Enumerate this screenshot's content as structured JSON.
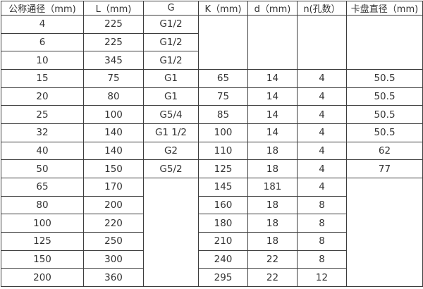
{
  "colors": {
    "background": "#ffffff",
    "border": "#3d3d3d",
    "text": "#333333"
  },
  "table": {
    "headers": [
      "公称通径（mm)",
      "L（mm)",
      "G",
      "K（mm)",
      "d（mm)",
      "n(孔数）",
      "卡盘直径（mm)"
    ],
    "rows": [
      {
        "cells": [
          {
            "t": "4"
          },
          {
            "t": "225"
          },
          {
            "t": "G1/2"
          },
          {
            "t": "",
            "rowspan": 3
          },
          {
            "t": "",
            "rowspan": 3
          },
          {
            "t": "",
            "rowspan": 3
          },
          {
            "t": "",
            "rowspan": 3
          }
        ]
      },
      {
        "cells": [
          {
            "t": "6"
          },
          {
            "t": "225"
          },
          {
            "t": "G1/2"
          }
        ]
      },
      {
        "cells": [
          {
            "t": "10"
          },
          {
            "t": "345"
          },
          {
            "t": "G1/2"
          }
        ]
      },
      {
        "cells": [
          {
            "t": "15"
          },
          {
            "t": "75"
          },
          {
            "t": "G1"
          },
          {
            "t": "65"
          },
          {
            "t": "14"
          },
          {
            "t": "4"
          },
          {
            "t": "50.5"
          }
        ]
      },
      {
        "cells": [
          {
            "t": "20"
          },
          {
            "t": "80"
          },
          {
            "t": "G1"
          },
          {
            "t": "75"
          },
          {
            "t": "14"
          },
          {
            "t": "4"
          },
          {
            "t": "50.5"
          }
        ]
      },
      {
        "cells": [
          {
            "t": "25"
          },
          {
            "t": "100"
          },
          {
            "t": "G5/4"
          },
          {
            "t": "85"
          },
          {
            "t": "14"
          },
          {
            "t": "4"
          },
          {
            "t": "50.5"
          }
        ]
      },
      {
        "cells": [
          {
            "t": "32"
          },
          {
            "t": "140"
          },
          {
            "t": "G1 1/2"
          },
          {
            "t": "100"
          },
          {
            "t": "14"
          },
          {
            "t": "4"
          },
          {
            "t": "50.5"
          }
        ]
      },
      {
        "cells": [
          {
            "t": "40"
          },
          {
            "t": "140"
          },
          {
            "t": "G2"
          },
          {
            "t": "110"
          },
          {
            "t": "18"
          },
          {
            "t": "4"
          },
          {
            "t": "62"
          }
        ]
      },
      {
        "cells": [
          {
            "t": "50"
          },
          {
            "t": "150"
          },
          {
            "t": "G5/2"
          },
          {
            "t": "125"
          },
          {
            "t": "18"
          },
          {
            "t": "4"
          },
          {
            "t": "77"
          }
        ]
      },
      {
        "cells": [
          {
            "t": "65"
          },
          {
            "t": "170"
          },
          {
            "t": "",
            "rowspan": 6
          },
          {
            "t": "145"
          },
          {
            "t": "181"
          },
          {
            "t": "4"
          },
          {
            "t": "",
            "rowspan": 6
          }
        ]
      },
      {
        "cells": [
          {
            "t": "80"
          },
          {
            "t": "200"
          },
          {
            "t": "160"
          },
          {
            "t": "18"
          },
          {
            "t": "8"
          }
        ]
      },
      {
        "cells": [
          {
            "t": "100"
          },
          {
            "t": "220"
          },
          {
            "t": "180"
          },
          {
            "t": "18"
          },
          {
            "t": "8"
          }
        ]
      },
      {
        "cells": [
          {
            "t": "125"
          },
          {
            "t": "250"
          },
          {
            "t": "210"
          },
          {
            "t": "18"
          },
          {
            "t": "8"
          }
        ]
      },
      {
        "cells": [
          {
            "t": "150"
          },
          {
            "t": "300"
          },
          {
            "t": "240"
          },
          {
            "t": "22"
          },
          {
            "t": "8"
          }
        ]
      },
      {
        "cells": [
          {
            "t": "200"
          },
          {
            "t": "360"
          },
          {
            "t": "295"
          },
          {
            "t": "22"
          },
          {
            "t": "12"
          }
        ]
      }
    ]
  }
}
